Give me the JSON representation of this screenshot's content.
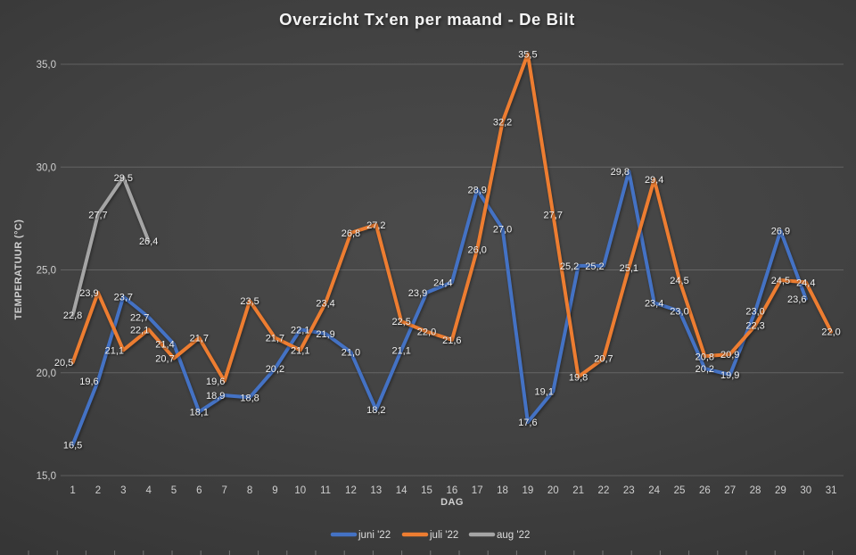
{
  "title": "Overzicht Tx'en per maand - De Bilt",
  "chart_data": {
    "type": "line",
    "title": "Overzicht Tx'en per maand - De Bilt",
    "xlabel": "DAG",
    "ylabel": "TEMPERATUUR (°C)",
    "ylim": [
      15,
      35
    ],
    "yticks": [
      15,
      20,
      25,
      30,
      35
    ],
    "grid": true,
    "legend_position": "bottom",
    "decimal_separator": ",",
    "categories": [
      1,
      2,
      3,
      4,
      5,
      6,
      7,
      8,
      9,
      10,
      11,
      12,
      13,
      14,
      15,
      16,
      17,
      18,
      19,
      20,
      21,
      22,
      23,
      24,
      25,
      26,
      27,
      28,
      29,
      30,
      31
    ],
    "series": [
      {
        "name": "juni '22",
        "color": "#4472C4",
        "values": [
          16.5,
          19.6,
          23.7,
          22.7,
          21.4,
          18.1,
          18.9,
          18.8,
          20.2,
          22.1,
          21.9,
          21.0,
          18.2,
          21.1,
          23.9,
          24.4,
          28.9,
          27.0,
          17.6,
          19.1,
          25.2,
          25.2,
          29.8,
          23.4,
          23.0,
          20.2,
          19.9,
          23.0,
          26.9,
          23.6
        ]
      },
      {
        "name": "juli '22",
        "color": "#ED7D31",
        "values": [
          20.5,
          23.9,
          21.1,
          22.1,
          20.7,
          21.7,
          19.6,
          23.5,
          21.7,
          21.1,
          23.4,
          26.8,
          27.2,
          22.5,
          22.0,
          21.6,
          26.0,
          32.2,
          35.5,
          27.7,
          19.8,
          20.7,
          25.1,
          29.4,
          24.5,
          20.8,
          20.9,
          22.3,
          24.5,
          24.4,
          22.0
        ]
      },
      {
        "name": "aug '22",
        "color": "#A5A5A5",
        "values": [
          22.8,
          27.7,
          29.5,
          26.4
        ]
      }
    ]
  }
}
